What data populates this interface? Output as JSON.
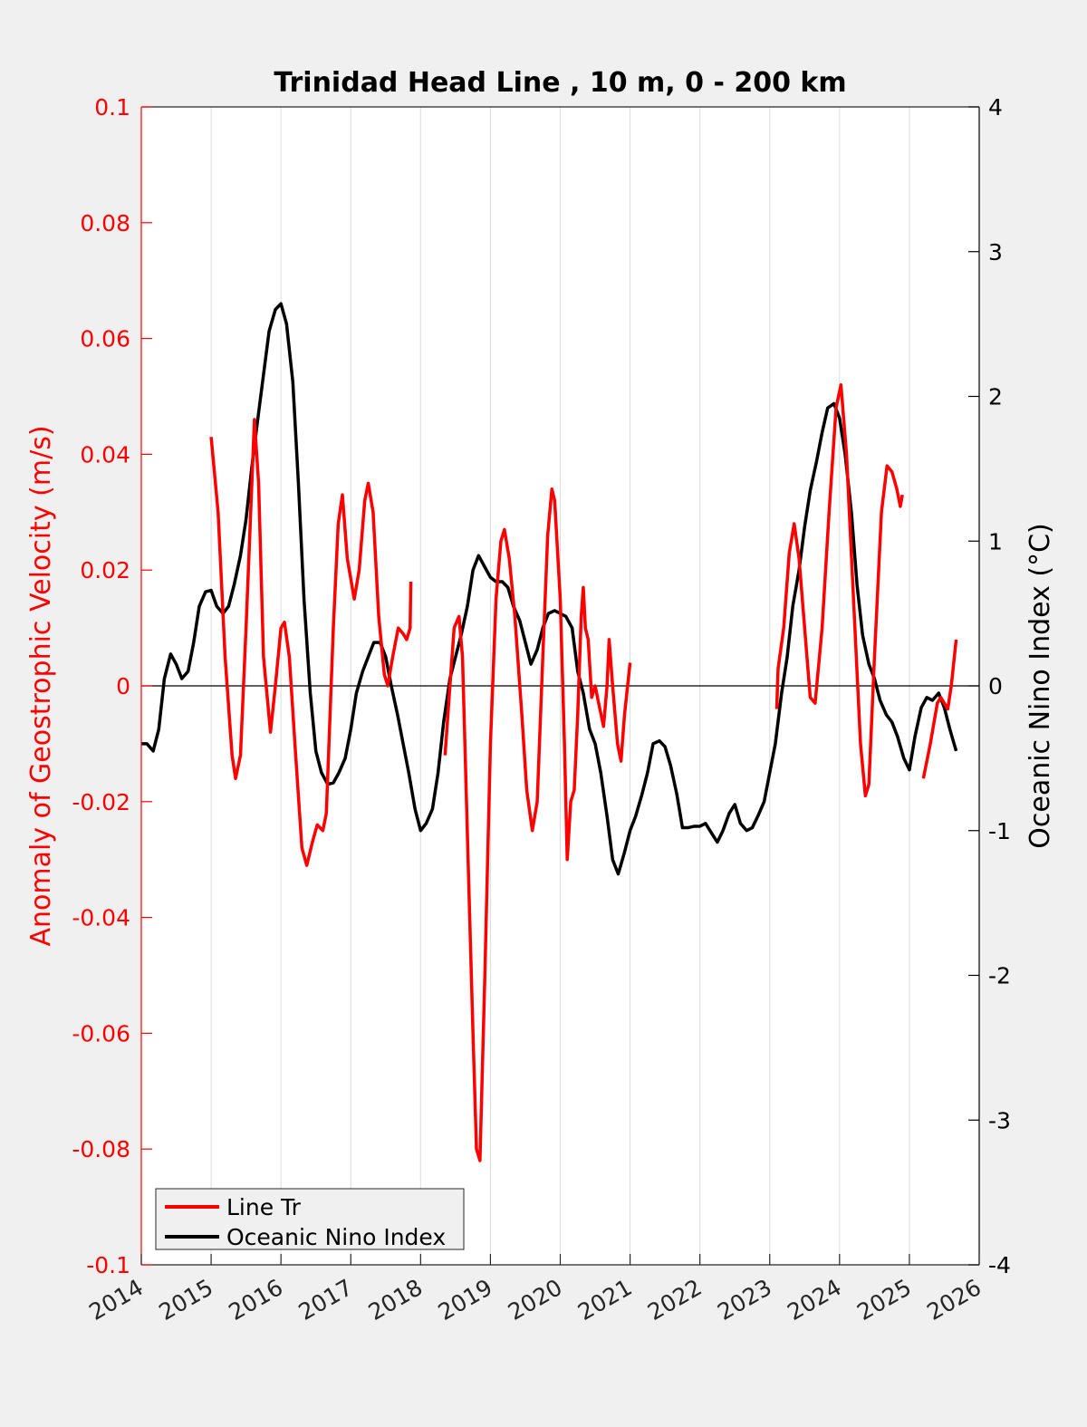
{
  "chart_data": {
    "type": "line",
    "title": "Trinidad Head Line , 10 m, 0 - 200 km",
    "xlabel": "",
    "ylabel_left": "Anomaly of Geostrophic Velocity (m/s)",
    "ylabel_right": "Oceanic Nino Index (°C)",
    "xlim": [
      2014,
      2026
    ],
    "ylim_left": [
      -0.1,
      0.1
    ],
    "ylim_right": [
      -4,
      4
    ],
    "x_ticks": [
      2014,
      2015,
      2016,
      2017,
      2018,
      2019,
      2020,
      2021,
      2022,
      2023,
      2024,
      2025,
      2026
    ],
    "x_tick_labels": [
      "2014",
      "2015",
      "2016",
      "2017",
      "2018",
      "2019",
      "2020",
      "2021",
      "2022",
      "2023",
      "2024",
      "2025",
      "2026"
    ],
    "y_left_ticks": [
      -0.1,
      -0.08,
      -0.06,
      -0.04,
      -0.02,
      0,
      0.02,
      0.04,
      0.06,
      0.08,
      0.1
    ],
    "y_left_tick_labels": [
      "-0.1",
      "-0.08",
      "-0.06",
      "-0.04",
      "-0.02",
      "0",
      "0.02",
      "0.04",
      "0.06",
      "0.08",
      "0.1"
    ],
    "y_right_ticks": [
      -4,
      -3,
      -2,
      -1,
      0,
      1,
      2,
      3,
      4
    ],
    "y_right_tick_labels": [
      "-4",
      "-3",
      "-2",
      "-1",
      "0",
      "1",
      "2",
      "3",
      "4"
    ],
    "grid": "vertical",
    "zero_line": true,
    "legend": {
      "position": "bottom-left",
      "entries": [
        "Line Tr",
        "Oceanic Nino Index"
      ]
    },
    "colors": {
      "line_tr": "#ff0000",
      "oni": "#000000",
      "left_axis": "#ff0000",
      "right_axis": "#000000"
    },
    "series": [
      {
        "name": "Line Tr",
        "axis": "left",
        "segments": [
          [
            [
              2015.0,
              0.043
            ],
            [
              2015.1,
              0.03
            ],
            [
              2015.2,
              0.005
            ],
            [
              2015.3,
              -0.012
            ],
            [
              2015.35,
              -0.016
            ],
            [
              2015.42,
              -0.012
            ],
            [
              2015.5,
              0.01
            ],
            [
              2015.6,
              0.04
            ],
            [
              2015.62,
              0.046
            ],
            [
              2015.68,
              0.035
            ],
            [
              2015.75,
              0.005
            ],
            [
              2015.85,
              -0.008
            ],
            [
              2015.92,
              0.0
            ],
            [
              2016.0,
              0.01
            ],
            [
              2016.05,
              0.011
            ],
            [
              2016.12,
              0.005
            ],
            [
              2016.2,
              -0.01
            ],
            [
              2016.3,
              -0.028
            ],
            [
              2016.37,
              -0.031
            ],
            [
              2016.45,
              -0.027
            ],
            [
              2016.52,
              -0.024
            ],
            [
              2016.6,
              -0.025
            ],
            [
              2016.65,
              -0.022
            ],
            [
              2016.75,
              0.01
            ],
            [
              2016.82,
              0.028
            ],
            [
              2016.88,
              0.033
            ],
            [
              2016.95,
              0.022
            ],
            [
              2017.05,
              0.015
            ],
            [
              2017.12,
              0.02
            ],
            [
              2017.2,
              0.032
            ],
            [
              2017.25,
              0.035
            ],
            [
              2017.32,
              0.03
            ],
            [
              2017.4,
              0.012
            ],
            [
              2017.48,
              0.002
            ],
            [
              2017.53,
              0.0
            ],
            [
              2017.6,
              0.005
            ],
            [
              2017.68,
              0.01
            ],
            [
              2017.75,
              0.009
            ],
            [
              2017.8,
              0.008
            ],
            [
              2017.85,
              0.01
            ],
            [
              2017.86,
              0.018
            ]
          ],
          [
            [
              2018.35,
              -0.012
            ],
            [
              2018.42,
              0.0
            ],
            [
              2018.48,
              0.01
            ],
            [
              2018.55,
              0.012
            ],
            [
              2018.6,
              0.005
            ],
            [
              2018.68,
              -0.03
            ],
            [
              2018.75,
              -0.06
            ],
            [
              2018.8,
              -0.08
            ],
            [
              2018.85,
              -0.082
            ],
            [
              2018.92,
              -0.05
            ],
            [
              2019.0,
              -0.01
            ],
            [
              2019.08,
              0.015
            ],
            [
              2019.15,
              0.025
            ],
            [
              2019.2,
              0.027
            ],
            [
              2019.27,
              0.022
            ],
            [
              2019.35,
              0.012
            ],
            [
              2019.45,
              -0.005
            ],
            [
              2019.52,
              -0.018
            ],
            [
              2019.6,
              -0.025
            ],
            [
              2019.67,
              -0.02
            ],
            [
              2019.75,
              0.005
            ],
            [
              2019.82,
              0.026
            ],
            [
              2019.88,
              0.034
            ],
            [
              2019.92,
              0.032
            ],
            [
              2020.0,
              0.015
            ],
            [
              2020.06,
              -0.01
            ],
            [
              2020.1,
              -0.03
            ],
            [
              2020.15,
              -0.02
            ],
            [
              2020.2,
              -0.018
            ],
            [
              2020.25,
              -0.005
            ],
            [
              2020.3,
              0.012
            ],
            [
              2020.33,
              0.017
            ],
            [
              2020.36,
              0.01
            ],
            [
              2020.4,
              0.008
            ],
            [
              2020.45,
              -0.002
            ],
            [
              2020.5,
              0.0
            ],
            [
              2020.55,
              -0.003
            ],
            [
              2020.62,
              -0.007
            ],
            [
              2020.67,
              0.0
            ],
            [
              2020.7,
              0.008
            ],
            [
              2020.75,
              0.0
            ],
            [
              2020.82,
              -0.01
            ],
            [
              2020.87,
              -0.013
            ],
            [
              2020.92,
              -0.005
            ],
            [
              2021.0,
              0.004
            ]
          ],
          [
            [
              2023.1,
              -0.004
            ],
            [
              2023.12,
              0.003
            ],
            [
              2023.2,
              0.01
            ],
            [
              2023.28,
              0.023
            ],
            [
              2023.35,
              0.028
            ],
            [
              2023.42,
              0.022
            ],
            [
              2023.5,
              0.01
            ],
            [
              2023.58,
              -0.002
            ],
            [
              2023.65,
              -0.003
            ],
            [
              2023.75,
              0.01
            ],
            [
              2023.85,
              0.03
            ],
            [
              2023.95,
              0.048
            ],
            [
              2024.02,
              0.052
            ],
            [
              2024.1,
              0.04
            ],
            [
              2024.2,
              0.015
            ],
            [
              2024.3,
              -0.01
            ],
            [
              2024.37,
              -0.019
            ],
            [
              2024.42,
              -0.017
            ],
            [
              2024.5,
              0.005
            ],
            [
              2024.6,
              0.03
            ],
            [
              2024.68,
              0.038
            ],
            [
              2024.75,
              0.037
            ],
            [
              2024.82,
              0.034
            ],
            [
              2024.87,
              0.031
            ],
            [
              2024.9,
              0.033
            ]
          ],
          [
            [
              2025.2,
              -0.016
            ],
            [
              2025.3,
              -0.01
            ],
            [
              2025.4,
              -0.003
            ],
            [
              2025.45,
              -0.002
            ],
            [
              2025.5,
              -0.003
            ],
            [
              2025.55,
              -0.004
            ],
            [
              2025.6,
              0.0
            ],
            [
              2025.67,
              0.008
            ]
          ]
        ]
      },
      {
        "name": "Oceanic Nino Index",
        "axis": "right",
        "x": [
          2014.0,
          2014.08,
          2014.17,
          2014.25,
          2014.33,
          2014.42,
          2014.5,
          2014.58,
          2014.67,
          2014.75,
          2014.83,
          2014.92,
          2015.0,
          2015.08,
          2015.17,
          2015.25,
          2015.33,
          2015.42,
          2015.5,
          2015.58,
          2015.67,
          2015.75,
          2015.83,
          2015.92,
          2016.0,
          2016.08,
          2016.17,
          2016.25,
          2016.33,
          2016.42,
          2016.5,
          2016.58,
          2016.67,
          2016.75,
          2016.83,
          2016.92,
          2017.0,
          2017.08,
          2017.17,
          2017.25,
          2017.33,
          2017.42,
          2017.5,
          2017.58,
          2017.67,
          2017.75,
          2017.83,
          2017.92,
          2018.0,
          2018.08,
          2018.17,
          2018.25,
          2018.33,
          2018.42,
          2018.5,
          2018.58,
          2018.67,
          2018.75,
          2018.83,
          2018.92,
          2019.0,
          2019.08,
          2019.17,
          2019.25,
          2019.33,
          2019.42,
          2019.5,
          2019.58,
          2019.67,
          2019.75,
          2019.83,
          2019.92,
          2020.0,
          2020.08,
          2020.17,
          2020.25,
          2020.33,
          2020.42,
          2020.5,
          2020.58,
          2020.67,
          2020.75,
          2020.83,
          2020.92,
          2021.0,
          2021.08,
          2021.17,
          2021.25,
          2021.33,
          2021.42,
          2021.5,
          2021.58,
          2021.67,
          2021.75,
          2021.83,
          2021.92,
          2022.0,
          2022.08,
          2022.17,
          2022.25,
          2022.33,
          2022.42,
          2022.5,
          2022.58,
          2022.67,
          2022.75,
          2022.83,
          2022.92,
          2023.0,
          2023.08,
          2023.17,
          2023.25,
          2023.33,
          2023.42,
          2023.5,
          2023.58,
          2023.67,
          2023.75,
          2023.83,
          2023.92,
          2024.0,
          2024.08,
          2024.17,
          2024.25,
          2024.33,
          2024.42,
          2024.5,
          2024.58,
          2024.67,
          2024.75,
          2024.83,
          2024.92,
          2025.0,
          2025.08,
          2025.17,
          2025.25,
          2025.33,
          2025.42,
          2025.5,
          2025.58,
          2025.67
        ],
        "values": [
          -0.4,
          -0.4,
          -0.45,
          -0.3,
          0.05,
          0.22,
          0.15,
          0.05,
          0.1,
          0.3,
          0.55,
          0.65,
          0.66,
          0.55,
          0.5,
          0.55,
          0.7,
          0.9,
          1.15,
          1.5,
          1.85,
          2.15,
          2.45,
          2.6,
          2.64,
          2.5,
          2.1,
          1.4,
          0.6,
          -0.05,
          -0.45,
          -0.6,
          -0.68,
          -0.67,
          -0.6,
          -0.5,
          -0.3,
          -0.05,
          0.1,
          0.2,
          0.3,
          0.3,
          0.2,
          0.0,
          -0.2,
          -0.4,
          -0.6,
          -0.85,
          -1.0,
          -0.95,
          -0.85,
          -0.6,
          -0.25,
          0.05,
          0.2,
          0.35,
          0.55,
          0.8,
          0.9,
          0.82,
          0.75,
          0.72,
          0.72,
          0.68,
          0.55,
          0.45,
          0.3,
          0.15,
          0.25,
          0.4,
          0.5,
          0.52,
          0.5,
          0.48,
          0.4,
          0.1,
          -0.05,
          -0.3,
          -0.4,
          -0.6,
          -0.9,
          -1.2,
          -1.3,
          -1.15,
          -1.0,
          -0.9,
          -0.75,
          -0.6,
          -0.4,
          -0.38,
          -0.42,
          -0.55,
          -0.75,
          -0.98,
          -0.98,
          -0.97,
          -0.97,
          -0.95,
          -1.02,
          -1.08,
          -1.0,
          -0.88,
          -0.82,
          -0.95,
          -1.0,
          -0.98,
          -0.9,
          -0.8,
          -0.6,
          -0.4,
          -0.05,
          0.2,
          0.55,
          0.8,
          1.1,
          1.35,
          1.55,
          1.75,
          1.92,
          1.95,
          1.85,
          1.6,
          1.2,
          0.7,
          0.35,
          0.15,
          0.05,
          -0.1,
          -0.2,
          -0.25,
          -0.35,
          -0.5,
          -0.58,
          -0.35,
          -0.15,
          -0.08,
          -0.1,
          -0.05,
          -0.15,
          -0.3,
          -0.45
        ]
      }
    ]
  }
}
